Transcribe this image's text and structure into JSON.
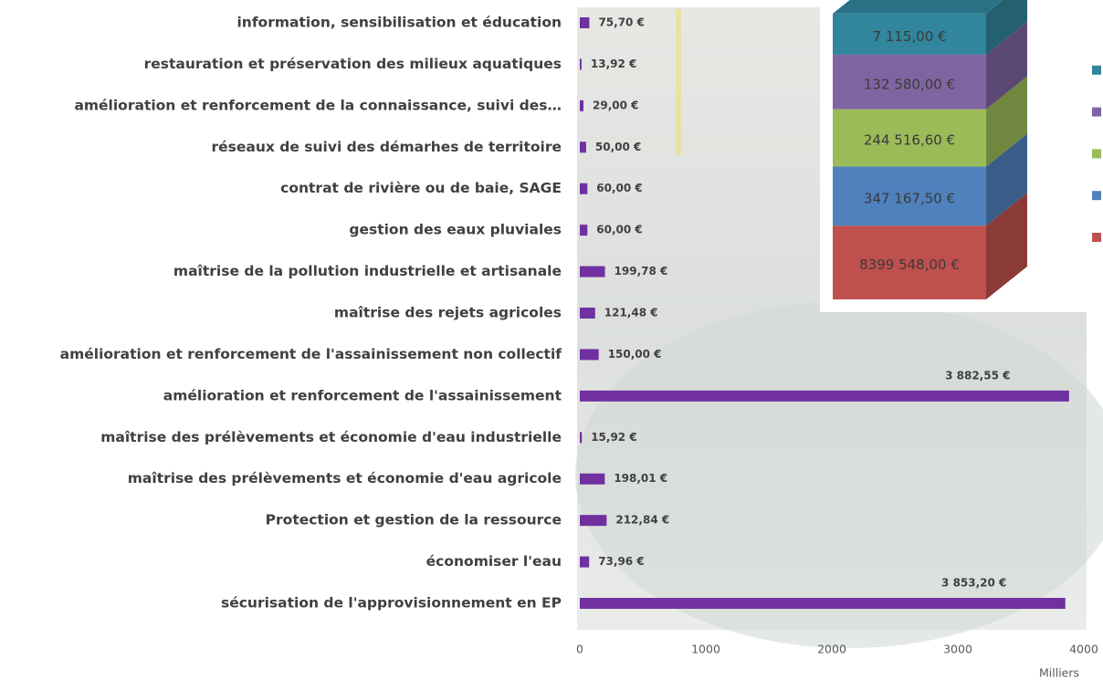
{
  "chart_data": [
    {
      "type": "bar",
      "categories": [
        "information, sensibilisation et éducation",
        "restauration et préservation des milieux aquatiques",
        "amélioration et renforcement de la connaissance, suivi des…",
        "réseaux de suivi des démarhes de territoire",
        "contrat de rivière ou de baie, SAGE",
        "gestion des eaux pluviales",
        "maîtrise de la pollution industrielle et artisanale",
        "maîtrise des rejets agricoles",
        "amélioration et renforcement de l'assainissement non collectif",
        "amélioration et renforcement de l'assainissement",
        "maîtrise des prélèvements et économie d'eau industrielle",
        "maîtrise des prélèvements et économie d'eau agricole",
        "Protection et gestion de la ressource",
        "économiser l'eau",
        "sécurisation de l'approvisionnement en EP"
      ],
      "values": [
        75.7,
        13.92,
        29.0,
        50.0,
        60.0,
        60.0,
        199.78,
        121.48,
        150.0,
        3882.55,
        15.92,
        198.01,
        212.84,
        73.96,
        3853.2
      ],
      "value_labels": [
        "75,70 €",
        "13,92 €",
        "29,00 €",
        "50,00 €",
        "60,00 €",
        "60,00 €",
        "199,78 €",
        "121,48 €",
        "150,00 €",
        "3 882,55 €",
        "15,92 €",
        "198,01 €",
        "212,84 €",
        "73,96 €",
        "3 853,20 €"
      ],
      "color": "#7030a0",
      "xlim": [
        0,
        4000
      ],
      "xticks": [
        0,
        1000,
        2000,
        3000,
        4000
      ],
      "x_label": "Milliers"
    },
    {
      "type": "stacked_bar",
      "log": true,
      "series": [
        {
          "color": "#c0504d",
          "values": [
            8399548.0
          ],
          "value_labels": [
            "8399 548,00 €"
          ]
        },
        {
          "color": "#4f81bd",
          "values": [
            347167.5
          ],
          "value_labels": [
            "347 167,50 €"
          ]
        },
        {
          "color": "#9bbb59",
          "values": [
            244516.6
          ],
          "value_labels": [
            "244 516,60 €"
          ]
        },
        {
          "color": "#8064a2",
          "values": [
            132580.0
          ],
          "value_labels": [
            "132 580,00 €"
          ]
        },
        {
          "color": "#31859c",
          "values": [
            7115.0
          ],
          "value_labels": [
            "7 115,00 €"
          ]
        }
      ]
    }
  ]
}
